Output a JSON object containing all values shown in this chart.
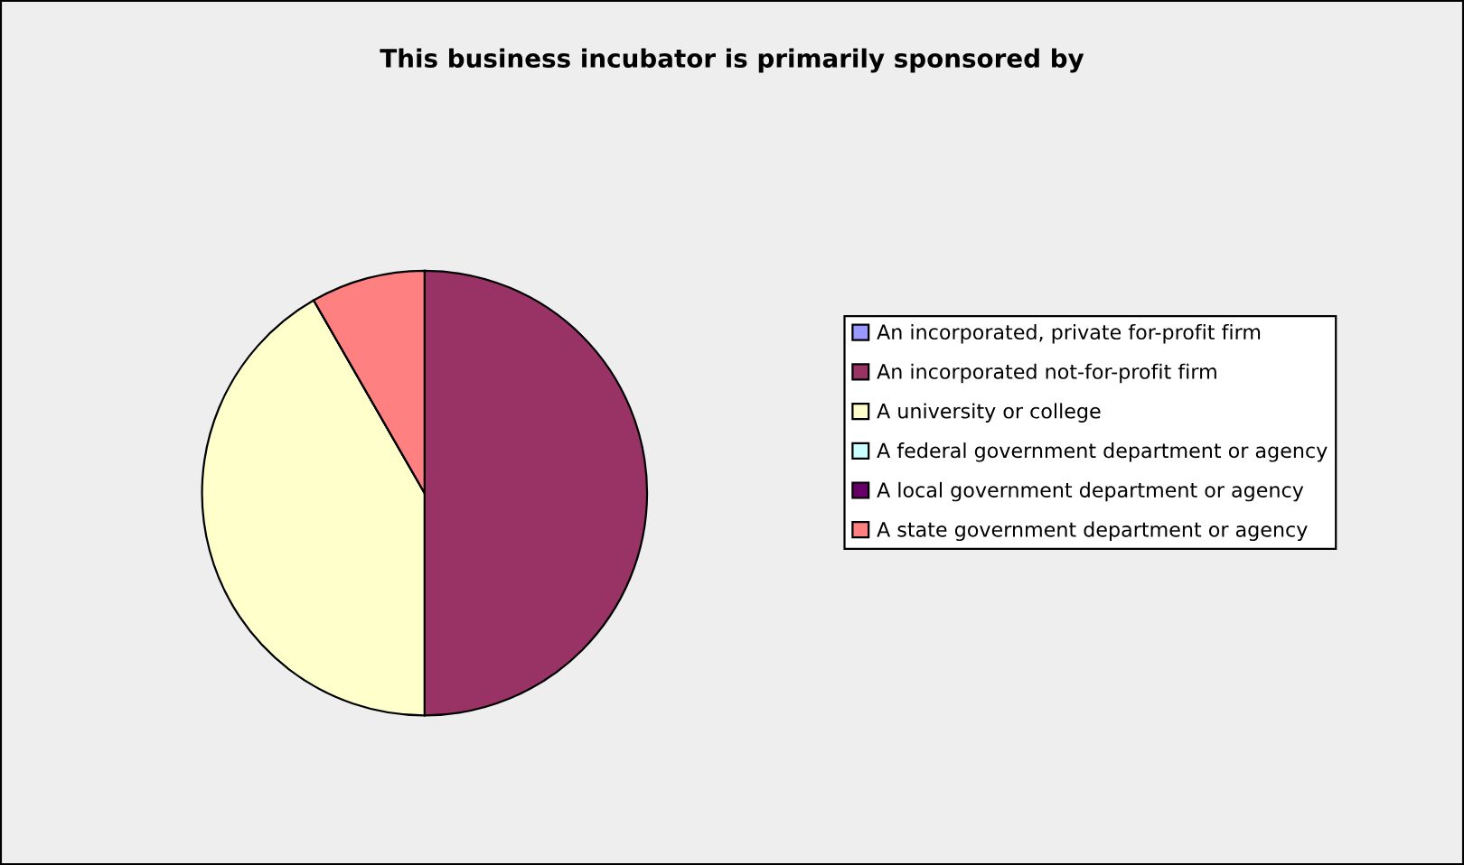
{
  "chart_data": {
    "type": "pie",
    "title": "This business incubator is primarily sponsored by",
    "categories": [
      "An incorporated, private for-profit firm",
      "An incorporated not-for-profit firm",
      "A university or college",
      "A federal government department or agency",
      "A local government department or agency",
      "A state government department or agency"
    ],
    "values": [
      0,
      50,
      41.7,
      0,
      0,
      8.3
    ],
    "colors": [
      "#9999ff",
      "#993366",
      "#ffffcc",
      "#ccffff",
      "#660066",
      "#ff8080"
    ],
    "legend": "right"
  }
}
